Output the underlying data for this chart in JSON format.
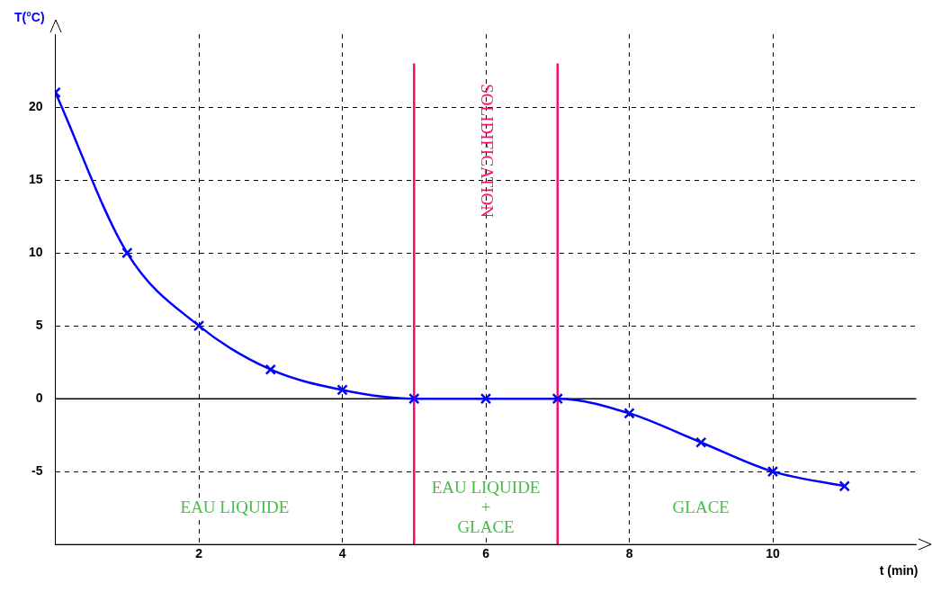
{
  "chart_data": {
    "type": "line",
    "xlabel": "t (min)",
    "ylabel": "T(°C)",
    "x": [
      0,
      1,
      2,
      3,
      4,
      5,
      6,
      7,
      8,
      9,
      10,
      11
    ],
    "series": [
      {
        "color": "#0000ff",
        "values": [
          21,
          10,
          5,
          2,
          0.6,
          0,
          0,
          0,
          -1,
          -3,
          -5,
          -6
        ]
      }
    ],
    "xlim": [
      0,
      12
    ],
    "ylim": [
      -10,
      25
    ],
    "xticks": [
      2,
      4,
      6,
      8,
      10
    ],
    "yticks": [
      -5,
      0,
      5,
      10,
      15,
      20
    ],
    "grid": true,
    "legend": false,
    "marker": "cross",
    "line_style": "solid",
    "ref_lines": [
      {
        "axis": "y",
        "value": 0,
        "color": "#000000",
        "line_style": "solid"
      },
      {
        "axis": "x",
        "value": 5,
        "color": "#ff0a6c",
        "line_style": "solid"
      },
      {
        "axis": "x",
        "value": 7,
        "color": "#ff0a6c",
        "line_style": "solid"
      }
    ],
    "annotations": [
      "SOLIDIFICATION",
      "EAU LIQUIDE",
      "EAU LIQUIDE\n+\nGLACE",
      "GLACE"
    ]
  }
}
